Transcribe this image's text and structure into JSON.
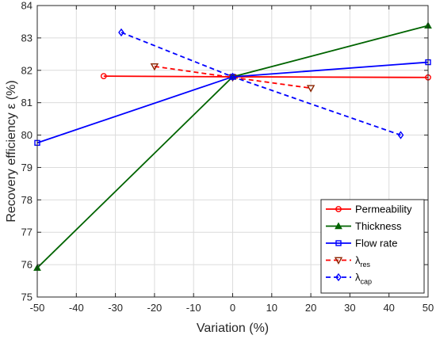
{
  "chart_data": {
    "type": "line",
    "xlabel": "Variation (%)",
    "ylabel": "Recovery efficiency ε (%)",
    "xlim": [
      -50,
      50
    ],
    "ylim": [
      75,
      84
    ],
    "xticks": [
      -50,
      -40,
      -30,
      -20,
      -10,
      0,
      10,
      20,
      30,
      40,
      50
    ],
    "yticks": [
      75,
      76,
      77,
      78,
      79,
      80,
      81,
      82,
      83,
      84
    ],
    "grid": true,
    "legend_position": "bottom-right",
    "series": [
      {
        "name": "Permeability",
        "color": "#ff0000",
        "marker": "circle",
        "line": "solid",
        "points": [
          [
            -33,
            81.82
          ],
          [
            0,
            81.8
          ],
          [
            50,
            81.78
          ]
        ]
      },
      {
        "name": "Thickness",
        "color": "#006400",
        "marker": "triangle-up",
        "line": "solid",
        "points": [
          [
            -50,
            75.9
          ],
          [
            0,
            81.8
          ],
          [
            50,
            83.38
          ]
        ]
      },
      {
        "name": "Flow rate",
        "color": "#0000ff",
        "marker": "square",
        "line": "solid",
        "points": [
          [
            -50,
            79.76
          ],
          [
            0,
            81.8
          ],
          [
            50,
            82.25
          ]
        ]
      },
      {
        "name": "λres",
        "label_main": "λ",
        "label_sub": "res",
        "color": "#ff0000",
        "marker_color": "#8b2500",
        "marker": "triangle-down",
        "line": "dashed",
        "points": [
          [
            -20,
            82.12
          ],
          [
            0,
            81.78
          ],
          [
            20,
            81.45
          ]
        ]
      },
      {
        "name": "λcap",
        "label_main": "λ",
        "label_sub": "cap",
        "color": "#0000ff",
        "marker": "diamond",
        "line": "dashed",
        "points": [
          [
            -28.5,
            83.17
          ],
          [
            0,
            81.8
          ],
          [
            43,
            80.0
          ]
        ]
      }
    ]
  }
}
